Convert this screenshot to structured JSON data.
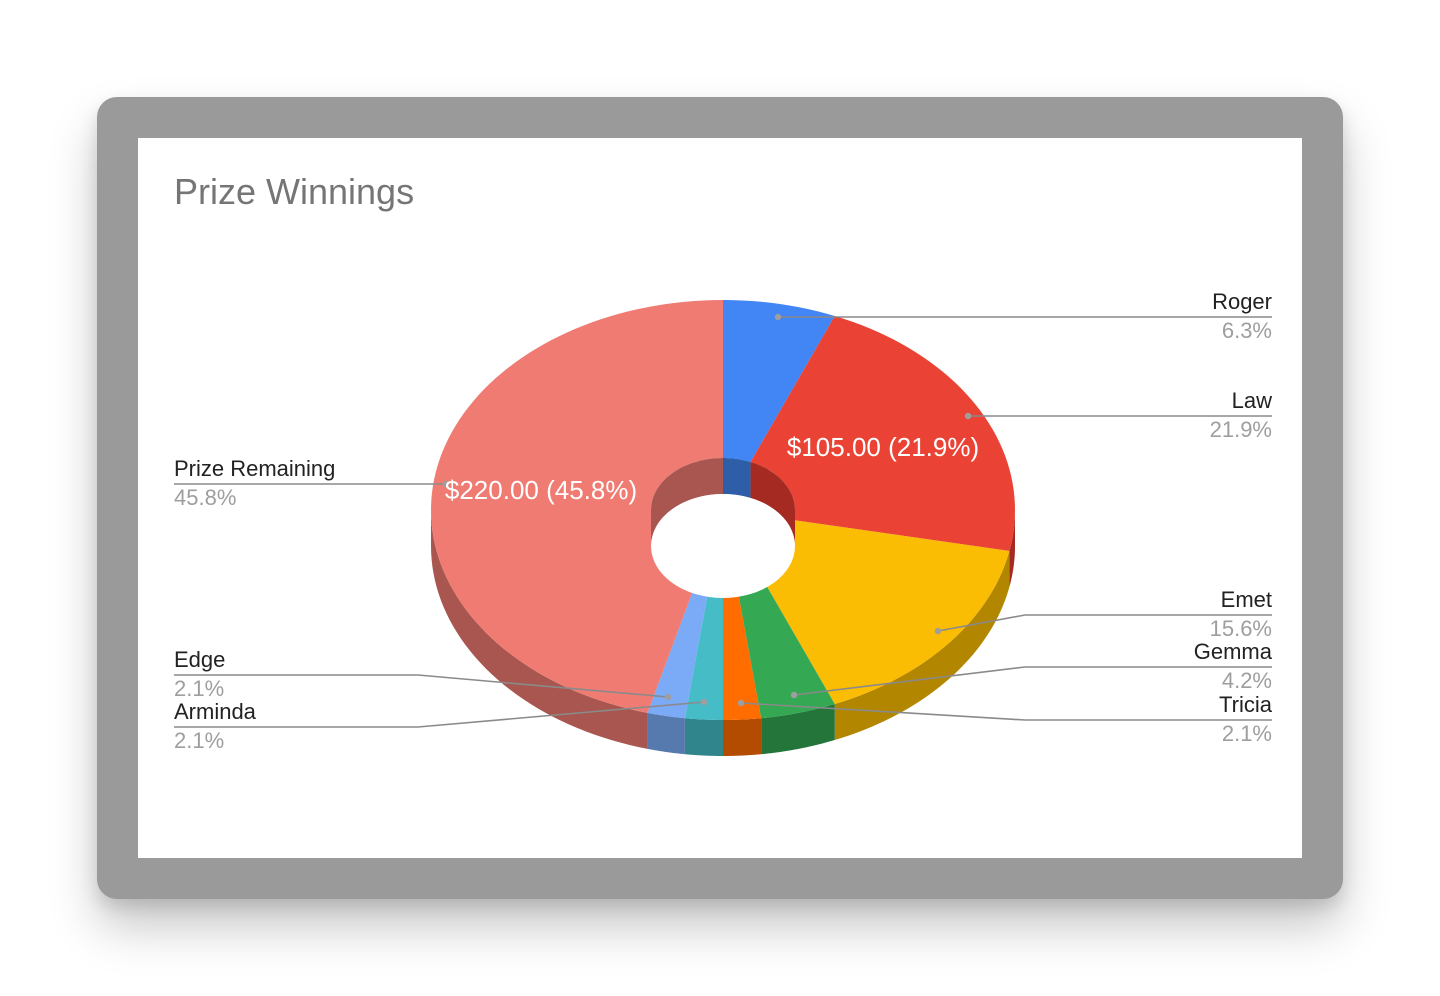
{
  "chart_data": {
    "type": "pie",
    "style": "3d-donut",
    "title": "Prize Winnings",
    "slices": [
      {
        "name": "Roger",
        "percent_label": "6.3%",
        "value": 30,
        "color": "#4285f4",
        "side_color": "#2f5ea9"
      },
      {
        "name": "Law",
        "percent_label": "21.9%",
        "value": 105,
        "color": "#ea4335",
        "side_color": "#a52a22",
        "inner_label": "$105.00 (21.9%)"
      },
      {
        "name": "Emet",
        "percent_label": "15.6%",
        "value": 75,
        "color": "#fbbc04",
        "side_color": "#b38600"
      },
      {
        "name": "Gemma",
        "percent_label": "4.2%",
        "value": 20,
        "color": "#34a853",
        "side_color": "#237539"
      },
      {
        "name": "Tricia",
        "percent_label": "2.1%",
        "value": 10,
        "color": "#ff6d01",
        "side_color": "#b34c00"
      },
      {
        "name": "Arminda",
        "percent_label": "2.1%",
        "value": 10,
        "color": "#46bdc6",
        "side_color": "#2f858b"
      },
      {
        "name": "Edge",
        "percent_label": "2.1%",
        "value": 10,
        "color": "#7baaf7",
        "side_color": "#5679ae"
      },
      {
        "name": "Prize Remaining",
        "percent_label": "45.8%",
        "value": 220,
        "color": "#f07b72",
        "side_color": "#a8564f",
        "inner_label": "$220.00 (45.8%)"
      }
    ],
    "legend": "leader-line labels"
  }
}
